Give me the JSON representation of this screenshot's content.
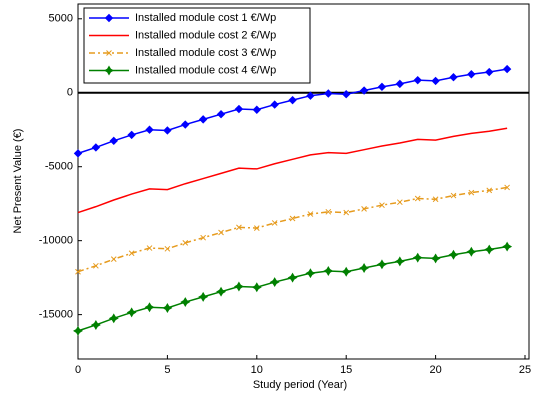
{
  "chart_data": {
    "type": "line",
    "x_label": "Study period (Year)",
    "y_label": "Net Present Value (€)",
    "x": [
      0,
      1,
      2,
      3,
      4,
      5,
      6,
      7,
      8,
      9,
      10,
      11,
      12,
      13,
      14,
      15,
      16,
      17,
      18,
      19,
      20,
      21,
      22,
      23,
      24
    ],
    "series": [
      {
        "name": "Installed module cost 1 €/Wp",
        "color": "#0000ff",
        "marker": "diamond",
        "linestyle": "solid",
        "values": [
          -4100,
          -3700,
          -3250,
          -2850,
          -2500,
          -2550,
          -2150,
          -1800,
          -1450,
          -1100,
          -1150,
          -800,
          -500,
          -200,
          -50,
          -100,
          150,
          400,
          600,
          850,
          800,
          1050,
          1250,
          1400,
          1600
        ]
      },
      {
        "name": "Installed module cost 2 €/Wp",
        "color": "#ff0000",
        "marker": "none",
        "linestyle": "solid",
        "values": [
          -8100,
          -7700,
          -7250,
          -6850,
          -6500,
          -6550,
          -6150,
          -5800,
          -5450,
          -5100,
          -5150,
          -4800,
          -4500,
          -4200,
          -4050,
          -4100,
          -3850,
          -3600,
          -3400,
          -3150,
          -3200,
          -2950,
          -2750,
          -2600,
          -2400
        ]
      },
      {
        "name": "Installed module cost 3 €/Wp",
        "color": "#e69b1e",
        "marker": "x",
        "linestyle": "dashdot",
        "values": [
          -12100,
          -11700,
          -11250,
          -10850,
          -10500,
          -10550,
          -10150,
          -9800,
          -9450,
          -9100,
          -9150,
          -8800,
          -8500,
          -8200,
          -8050,
          -8100,
          -7850,
          -7600,
          -7400,
          -7150,
          -7200,
          -6950,
          -6750,
          -6600,
          -6400
        ]
      },
      {
        "name": "Installed module cost 4 €/Wp",
        "color": "#008000",
        "marker": "star",
        "linestyle": "solid",
        "values": [
          -16100,
          -15700,
          -15250,
          -14850,
          -14500,
          -14550,
          -14150,
          -13800,
          -13450,
          -13100,
          -13150,
          -12800,
          -12500,
          -12200,
          -12050,
          -12100,
          -11850,
          -11600,
          -11400,
          -11150,
          -11200,
          -10950,
          -10750,
          -10600,
          -10400
        ]
      }
    ],
    "xlim": [
      0,
      25
    ],
    "xticks": [
      0,
      5,
      10,
      15,
      20,
      25
    ],
    "ylim": [
      -18000,
      6000
    ],
    "yticks": [
      5000,
      0,
      -5000,
      -10000,
      -15000
    ],
    "zero_line": true,
    "grid": false,
    "legend": "upper left"
  }
}
